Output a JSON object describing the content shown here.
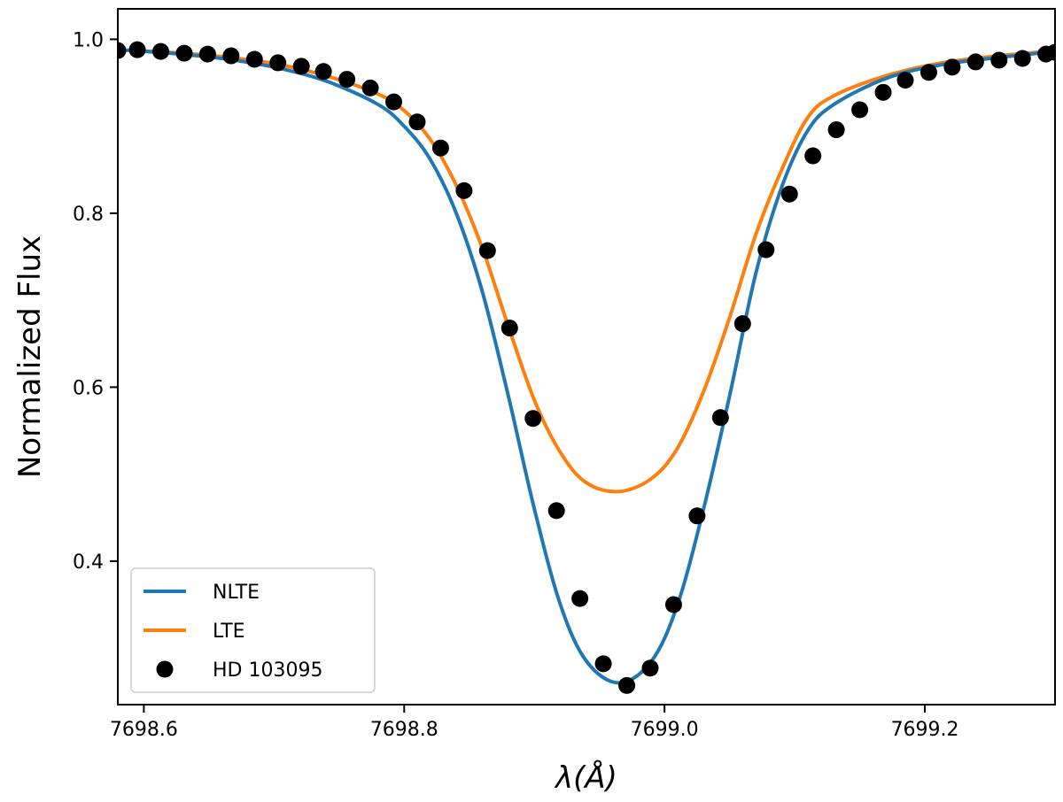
{
  "chart_data": {
    "type": "line",
    "title": "",
    "xlabel": "λ(Å)",
    "ylabel": "Normalized Flux",
    "xlim": [
      7698.58,
      7699.3
    ],
    "ylim": [
      0.235,
      1.035
    ],
    "x_ticks": [
      7698.6,
      7698.8,
      7699.0,
      7699.2
    ],
    "x_tick_labels": [
      "7698.6",
      "7698.8",
      "7699.0",
      "7699.2"
    ],
    "y_ticks": [
      0.4,
      0.6,
      0.8,
      1.0
    ],
    "y_tick_labels": [
      "0.4",
      "0.6",
      "0.8",
      "1.0"
    ],
    "grid": false,
    "legend_position": "lower-left",
    "colors": {
      "nlte": "#1f77b4",
      "lte": "#ff7f0e",
      "observed": "#000000"
    },
    "series": [
      {
        "name": "NLTE",
        "kind": "line",
        "x": [
          7698.58,
          7698.62,
          7698.66,
          7698.7,
          7698.74,
          7698.78,
          7698.8,
          7698.82,
          7698.84,
          7698.86,
          7698.88,
          7698.9,
          7698.92,
          7698.94,
          7698.965,
          7698.99,
          7699.01,
          7699.03,
          7699.05,
          7699.07,
          7699.09,
          7699.11,
          7699.13,
          7699.17,
          7699.21,
          7699.25,
          7699.3
        ],
        "y": [
          0.988,
          0.984,
          0.978,
          0.968,
          0.952,
          0.925,
          0.9,
          0.862,
          0.8,
          0.71,
          0.59,
          0.46,
          0.35,
          0.285,
          0.26,
          0.285,
          0.35,
          0.46,
          0.59,
          0.73,
          0.83,
          0.895,
          0.925,
          0.955,
          0.97,
          0.978,
          0.986
        ]
      },
      {
        "name": "LTE",
        "kind": "line",
        "x": [
          7698.58,
          7698.62,
          7698.66,
          7698.7,
          7698.74,
          7698.78,
          7698.8,
          7698.82,
          7698.84,
          7698.86,
          7698.88,
          7698.9,
          7698.92,
          7698.94,
          7698.965,
          7698.99,
          7699.01,
          7699.03,
          7699.05,
          7699.07,
          7699.09,
          7699.11,
          7699.13,
          7699.17,
          7699.21,
          7699.25,
          7699.3
        ],
        "y": [
          0.988,
          0.985,
          0.98,
          0.972,
          0.958,
          0.937,
          0.918,
          0.885,
          0.832,
          0.76,
          0.67,
          0.585,
          0.525,
          0.49,
          0.48,
          0.495,
          0.53,
          0.595,
          0.68,
          0.775,
          0.85,
          0.91,
          0.935,
          0.958,
          0.972,
          0.98,
          0.987
        ]
      },
      {
        "name": "HD 103095",
        "kind": "scatter",
        "x": [
          7698.58,
          7698.595,
          7698.613,
          7698.631,
          7698.649,
          7698.667,
          7698.685,
          7698.703,
          7698.721,
          7698.738,
          7698.756,
          7698.774,
          7698.792,
          7698.81,
          7698.828,
          7698.846,
          7698.864,
          7698.881,
          7698.899,
          7698.917,
          7698.935,
          7698.953,
          7698.971,
          7698.989,
          7699.007,
          7699.025,
          7699.043,
          7699.06,
          7699.078,
          7699.096,
          7699.114,
          7699.132,
          7699.15,
          7699.168,
          7699.185,
          7699.203,
          7699.221,
          7699.239,
          7699.257,
          7699.275,
          7699.293,
          7699.3
        ],
        "y": [
          0.987,
          0.988,
          0.986,
          0.984,
          0.983,
          0.981,
          0.977,
          0.973,
          0.969,
          0.963,
          0.954,
          0.944,
          0.928,
          0.905,
          0.875,
          0.826,
          0.757,
          0.668,
          0.564,
          0.458,
          0.357,
          0.282,
          0.257,
          0.277,
          0.35,
          0.452,
          0.565,
          0.673,
          0.758,
          0.822,
          0.866,
          0.896,
          0.919,
          0.939,
          0.953,
          0.962,
          0.968,
          0.974,
          0.976,
          0.978,
          0.983,
          0.985
        ]
      }
    ]
  }
}
